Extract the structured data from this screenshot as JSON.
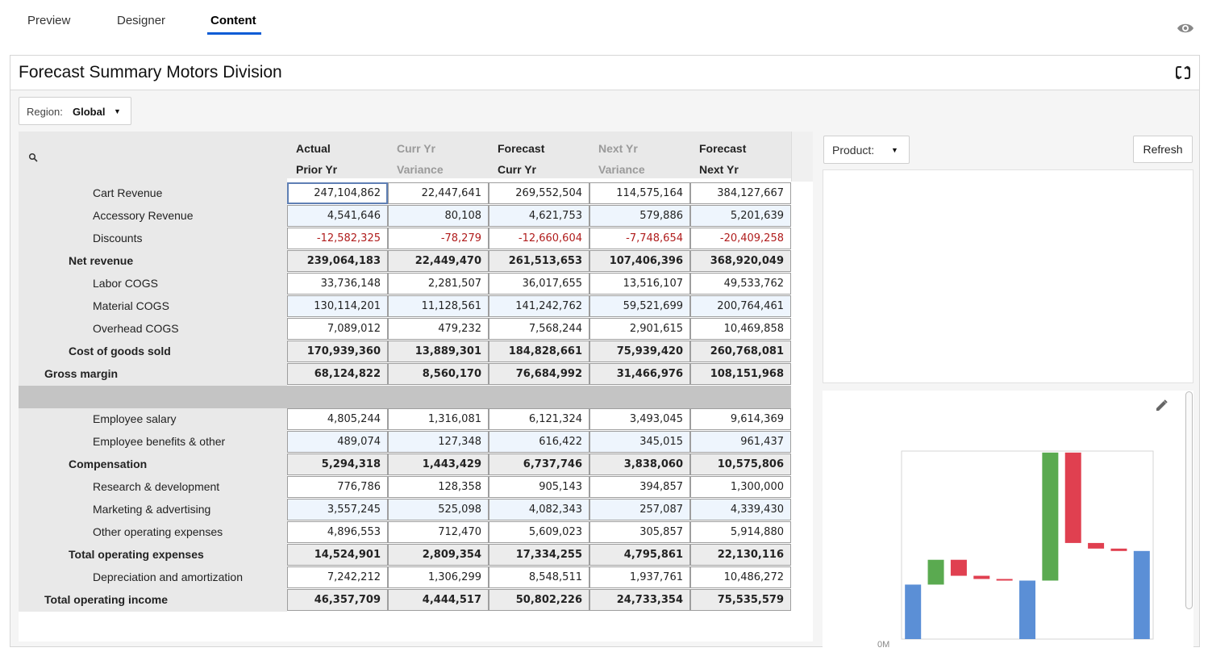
{
  "tabs": [
    {
      "label": "Preview"
    },
    {
      "label": "Designer"
    },
    {
      "label": "Content"
    }
  ],
  "active_tab": "Content",
  "panel": {
    "title": "Forecast Summary Motors Division"
  },
  "region": {
    "label": "Region:",
    "value": "Global"
  },
  "product": {
    "label": "Product:"
  },
  "refresh_label": "Refresh",
  "columns": [
    {
      "line1": "Actual",
      "line2": "Prior Yr",
      "muted": false
    },
    {
      "line1": "Curr Yr",
      "line2": "Variance",
      "muted": true
    },
    {
      "line1": "Forecast",
      "line2": "Curr Yr",
      "muted": false
    },
    {
      "line1": "Next Yr",
      "line2": "Variance",
      "muted": true
    },
    {
      "line1": "Forecast",
      "line2": "Next Yr",
      "muted": false
    }
  ],
  "rows": [
    {
      "label": "Cart Revenue",
      "level": 2,
      "values": [
        "247,104,862",
        "22,447,641",
        "269,552,504",
        "114,575,164",
        "384,127,667"
      ]
    },
    {
      "label": "Accessory Revenue",
      "level": 2,
      "values": [
        "4,541,646",
        "80,108",
        "4,621,753",
        "579,886",
        "5,201,639"
      ]
    },
    {
      "label": "Discounts",
      "level": 2,
      "values": [
        "-12,582,325",
        "-78,279",
        "-12,660,604",
        "-7,748,654",
        "-20,409,258"
      ]
    },
    {
      "label": "Net revenue",
      "level": 1,
      "values": [
        "239,064,183",
        "22,449,470",
        "261,513,653",
        "107,406,396",
        "368,920,049"
      ]
    },
    {
      "label": "Labor COGS",
      "level": 2,
      "values": [
        "33,736,148",
        "2,281,507",
        "36,017,655",
        "13,516,107",
        "49,533,762"
      ]
    },
    {
      "label": "Material COGS",
      "level": 2,
      "values": [
        "130,114,201",
        "11,128,561",
        "141,242,762",
        "59,521,699",
        "200,764,461"
      ]
    },
    {
      "label": "Overhead COGS",
      "level": 2,
      "values": [
        "7,089,012",
        "479,232",
        "7,568,244",
        "2,901,615",
        "10,469,858"
      ]
    },
    {
      "label": "Cost of goods sold",
      "level": 1,
      "values": [
        "170,939,360",
        "13,889,301",
        "184,828,661",
        "75,939,420",
        "260,768,081"
      ]
    },
    {
      "label": "Gross margin",
      "level": 0,
      "values": [
        "68,124,822",
        "8,560,170",
        "76,684,992",
        "31,466,976",
        "108,151,968"
      ]
    },
    {
      "label": "",
      "level": -1,
      "values": []
    },
    {
      "label": "Employee salary",
      "level": 2,
      "values": [
        "4,805,244",
        "1,316,081",
        "6,121,324",
        "3,493,045",
        "9,614,369"
      ]
    },
    {
      "label": "Employee benefits & other",
      "level": 2,
      "values": [
        "489,074",
        "127,348",
        "616,422",
        "345,015",
        "961,437"
      ]
    },
    {
      "label": "Compensation",
      "level": 1,
      "values": [
        "5,294,318",
        "1,443,429",
        "6,737,746",
        "3,838,060",
        "10,575,806"
      ]
    },
    {
      "label": "Research & development",
      "level": 2,
      "values": [
        "776,786",
        "128,358",
        "905,143",
        "394,857",
        "1,300,000"
      ]
    },
    {
      "label": "Marketing & advertising",
      "level": 2,
      "values": [
        "3,557,245",
        "525,098",
        "4,082,343",
        "257,087",
        "4,339,430"
      ]
    },
    {
      "label": "Other operating expenses",
      "level": 2,
      "values": [
        "4,896,553",
        "712,470",
        "5,609,023",
        "305,857",
        "5,914,880"
      ]
    },
    {
      "label": "Total operating expenses",
      "level": 1,
      "values": [
        "14,524,901",
        "2,809,354",
        "17,334,255",
        "4,795,861",
        "22,130,116"
      ]
    },
    {
      "label": "Depreciation and amortization",
      "level": 2,
      "values": [
        "7,242,212",
        "1,306,299",
        "8,548,511",
        "1,937,761",
        "10,486,272"
      ]
    },
    {
      "label": "Total operating income",
      "level": 0,
      "values": [
        "46,357,709",
        "4,444,517",
        "50,802,226",
        "24,733,354",
        "75,535,579"
      ]
    }
  ],
  "chart_data": {
    "type": "bar",
    "subtype": "waterfall",
    "x_categories": [],
    "y_tick_visible": "0M",
    "colors": {
      "total": "#5b8fd6",
      "increase": "#5aaa50",
      "decrease": "#e04050"
    },
    "series": [
      {
        "start": 0,
        "end": 68124822,
        "kind": "total"
      },
      {
        "start": 68124822,
        "end": 99124822,
        "kind": "increase"
      },
      {
        "start": 99124822,
        "end": 79124822,
        "kind": "decrease"
      },
      {
        "start": 79124822,
        "end": 75124822,
        "kind": "decrease"
      },
      {
        "start": 75124822,
        "end": 73124822,
        "kind": "decrease"
      },
      {
        "start": 0,
        "end": 73124822,
        "kind": "total"
      },
      {
        "start": 73124822,
        "end": 233124822,
        "kind": "increase"
      },
      {
        "start": 233124822,
        "end": 120124822,
        "kind": "decrease"
      },
      {
        "start": 120124822,
        "end": 113124822,
        "kind": "decrease"
      },
      {
        "start": 113124822,
        "end": 110124822,
        "kind": "decrease"
      },
      {
        "start": 0,
        "end": 110124822,
        "kind": "total"
      }
    ],
    "ylim": [
      0,
      235000000
    ]
  }
}
